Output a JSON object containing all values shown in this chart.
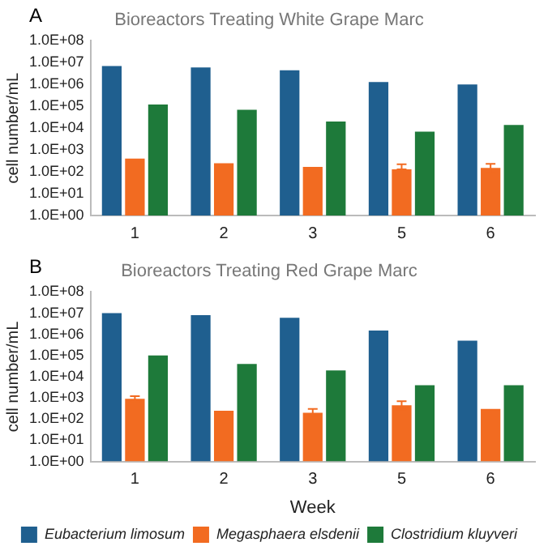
{
  "chart_data": [
    {
      "type": "bar",
      "title": "Bioreactors Treating White Grape Marc",
      "ylabel": "cell number/mL",
      "annotations": [
        "A"
      ],
      "categories": [
        "1",
        "2",
        "3",
        "5",
        "6"
      ],
      "log": true,
      "grid": false,
      "legend": false,
      "ylim": [
        1,
        100000000
      ],
      "yticks": [
        {
          "value": 1,
          "label": "1.0E+00"
        },
        {
          "value": 10,
          "label": "1.0E+01"
        },
        {
          "value": 100,
          "label": "1.0E+02"
        },
        {
          "value": 1000,
          "label": "1.0E+03"
        },
        {
          "value": 10000,
          "label": "1.0E+04"
        },
        {
          "value": 100000,
          "label": "1.0E+05"
        },
        {
          "value": 1000000,
          "label": "1.0E+06"
        },
        {
          "value": 10000000,
          "label": "1.0E+07"
        },
        {
          "value": 100000000,
          "label": "1.0E+08"
        }
      ],
      "series": [
        {
          "color": "#1f5f8f",
          "values": [
            7000000,
            6000000,
            4500000,
            1300000,
            1000000
          ]
        },
        {
          "color": "#f26b21",
          "values": [
            400,
            250,
            170,
            130,
            150
          ],
          "errors": [
            null,
            null,
            null,
            [
              130,
              220
            ],
            [
              90,
              230
            ]
          ]
        },
        {
          "color": "#1e7a3a",
          "values": [
            120000,
            70000,
            20000,
            7000,
            14000
          ]
        }
      ]
    },
    {
      "type": "bar",
      "title": "Bioreactors Treating Red Grape Marc",
      "ylabel": "cell number/mL",
      "xlabel": "Week",
      "annotations": [
        "B"
      ],
      "categories": [
        "1",
        "2",
        "3",
        "5",
        "6"
      ],
      "log": true,
      "grid": false,
      "legend": "bottom",
      "ylim": [
        1,
        100000000
      ],
      "yticks": [
        {
          "value": 1,
          "label": "1.0E+00"
        },
        {
          "value": 10,
          "label": "1.0E+01"
        },
        {
          "value": 100,
          "label": "1.0E+02"
        },
        {
          "value": 1000,
          "label": "1.0E+03"
        },
        {
          "value": 10000,
          "label": "1.0E+04"
        },
        {
          "value": 100000,
          "label": "1.0E+05"
        },
        {
          "value": 1000000,
          "label": "1.0E+06"
        },
        {
          "value": 10000000,
          "label": "1.0E+07"
        },
        {
          "value": 100000000,
          "label": "1.0E+08"
        }
      ],
      "series": [
        {
          "name": "Eubacterium limosum",
          "color": "#1f5f8f",
          "values": [
            10000000,
            8000000,
            6000000,
            1500000,
            500000
          ]
        },
        {
          "name": "Megasphaera elsdenii",
          "color": "#f26b21",
          "values": [
            900,
            250,
            200,
            450,
            300
          ],
          "errors": [
            [
              700,
              1200
            ],
            null,
            [
              140,
              300
            ],
            [
              280,
              700
            ],
            null
          ]
        },
        {
          "name": "Clostridium kluyveri",
          "color": "#1e7a3a",
          "values": [
            100000,
            40000,
            20000,
            4000,
            4000
          ]
        }
      ]
    }
  ]
}
